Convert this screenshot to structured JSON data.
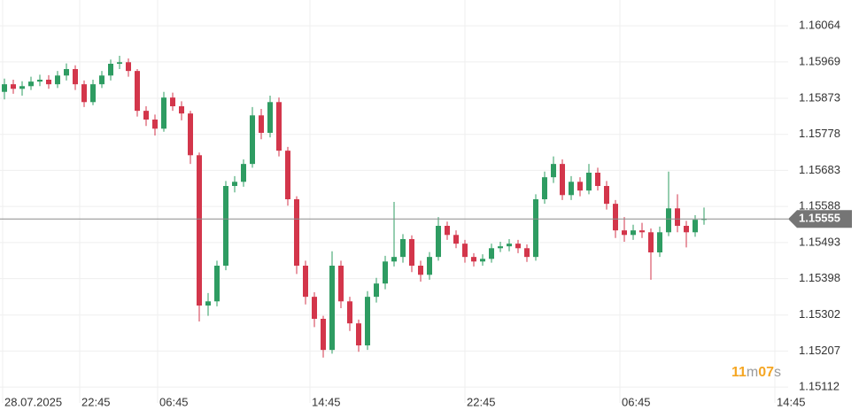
{
  "chart_data": {
    "type": "candlestick",
    "up_color": "#2e9c62",
    "down_color": "#d3364b",
    "grid": true,
    "open": [
      1.1589,
      1.1591,
      1.15898,
      1.15905,
      1.15917,
      1.15922,
      1.1591,
      1.15933,
      1.1595,
      1.1591,
      1.15863,
      1.1591,
      1.15933,
      1.15964,
      1.15968,
      1.15945,
      1.1584,
      1.15817,
      1.15793,
      1.15875,
      1.15852,
      1.15833,
      1.15723,
      1.15327,
      1.15338,
      1.15432,
      1.15642,
      1.15653,
      1.157,
      1.15828,
      1.15782,
      1.15863,
      1.15735,
      1.15607,
      1.15432,
      1.1535,
      1.15292,
      1.1521,
      1.15432,
      1.15338,
      1.1528,
      1.15222,
      1.1535,
      1.15385,
      1.15443,
      1.15455,
      1.15502,
      1.15432,
      1.15408,
      1.15455,
      1.15537,
      1.15513,
      1.1549,
      1.15455,
      1.15443,
      1.1545,
      1.15478,
      1.15483,
      1.1549,
      1.15478,
      1.15455,
      1.15607,
      1.15665,
      1.157,
      1.15618,
      1.15653,
      1.1563,
      1.15677,
      1.15642,
      1.15595,
      1.15525,
      1.15513,
      1.15525,
      1.1552,
      1.15467,
      1.1552,
      1.15583,
      1.15537,
      1.1552,
      1.15553
    ],
    "high": [
      1.15925,
      1.15922,
      1.15918,
      1.1593,
      1.15935,
      1.15934,
      1.15945,
      1.15965,
      1.1596,
      1.1592,
      1.15922,
      1.15945,
      1.15975,
      1.15985,
      1.15978,
      1.1595,
      1.15852,
      1.1583,
      1.1589,
      1.15888,
      1.15865,
      1.1584,
      1.1573,
      1.1536,
      1.15445,
      1.15655,
      1.15668,
      1.15712,
      1.1585,
      1.15845,
      1.1588,
      1.15875,
      1.15745,
      1.15615,
      1.15445,
      1.15362,
      1.153,
      1.1547,
      1.15445,
      1.1535,
      1.1529,
      1.15365,
      1.154,
      1.15458,
      1.156,
      1.15515,
      1.15512,
      1.15445,
      1.15468,
      1.1556,
      1.15548,
      1.15525,
      1.155,
      1.15465,
      1.15462,
      1.1549,
      1.15495,
      1.15502,
      1.155,
      1.15488,
      1.1562,
      1.1568,
      1.1572,
      1.15712,
      1.15668,
      1.15665,
      1.157,
      1.1569,
      1.15655,
      1.15605,
      1.1556,
      1.1554,
      1.15545,
      1.1553,
      1.15535,
      1.1568,
      1.1562,
      1.1555,
      1.15565,
      1.15585
    ],
    "low": [
      1.1587,
      1.15885,
      1.1588,
      1.15895,
      1.15905,
      1.15898,
      1.159,
      1.1592,
      1.15895,
      1.1585,
      1.15855,
      1.159,
      1.1592,
      1.1595,
      1.1593,
      1.15825,
      1.158,
      1.15775,
      1.15785,
      1.1584,
      1.15815,
      1.157,
      1.15285,
      1.153,
      1.15325,
      1.1542,
      1.15625,
      1.1564,
      1.1569,
      1.15765,
      1.1577,
      1.1572,
      1.1559,
      1.1541,
      1.1533,
      1.1527,
      1.1519,
      1.152,
      1.1532,
      1.1526,
      1.15205,
      1.1521,
      1.15335,
      1.1537,
      1.1543,
      1.1544,
      1.15415,
      1.1539,
      1.15395,
      1.15445,
      1.155,
      1.15478,
      1.1544,
      1.1543,
      1.15432,
      1.1544,
      1.15468,
      1.1547,
      1.15465,
      1.15442,
      1.15445,
      1.15595,
      1.1565,
      1.15605,
      1.15605,
      1.15615,
      1.1562,
      1.1563,
      1.1558,
      1.15505,
      1.15495,
      1.155,
      1.15505,
      1.15395,
      1.15455,
      1.1551,
      1.1552,
      1.1548,
      1.15508,
      1.1554
    ],
    "close": [
      1.1591,
      1.15898,
      1.15905,
      1.15917,
      1.15922,
      1.1591,
      1.15933,
      1.1595,
      1.1591,
      1.15863,
      1.1591,
      1.15933,
      1.15964,
      1.15968,
      1.15945,
      1.1584,
      1.15817,
      1.15793,
      1.15875,
      1.15852,
      1.15833,
      1.15723,
      1.15327,
      1.15338,
      1.15432,
      1.15642,
      1.15653,
      1.157,
      1.15828,
      1.15782,
      1.15863,
      1.15735,
      1.15607,
      1.15432,
      1.1535,
      1.15292,
      1.1521,
      1.15432,
      1.15338,
      1.1528,
      1.15222,
      1.1535,
      1.15385,
      1.15443,
      1.15455,
      1.15502,
      1.15432,
      1.15408,
      1.15455,
      1.15537,
      1.15513,
      1.1549,
      1.15455,
      1.15443,
      1.1545,
      1.15478,
      1.15483,
      1.1549,
      1.15478,
      1.15455,
      1.15607,
      1.15665,
      1.157,
      1.15618,
      1.15653,
      1.1563,
      1.15677,
      1.15642,
      1.15595,
      1.15525,
      1.15513,
      1.15525,
      1.1552,
      1.15467,
      1.1552,
      1.15583,
      1.15537,
      1.1552,
      1.15553,
      1.15555
    ],
    "xlim": [
      -0.5,
      88.5
    ],
    "xticks": [
      {
        "value": -0.2,
        "label": "28.07.2025"
      },
      {
        "value": 8.5,
        "label": "22:45"
      },
      {
        "value": 17.3,
        "label": "06:45"
      },
      {
        "value": 34.5,
        "label": "14:45"
      },
      {
        "value": 52,
        "label": "22:45"
      },
      {
        "value": 69.5,
        "label": "06:45"
      },
      {
        "value": 87,
        "label": "14:45"
      }
    ],
    "ylim": [
      1.15047,
      1.16132
    ],
    "yticks": [
      1.16064,
      1.15969,
      1.15873,
      1.15778,
      1.15683,
      1.15588,
      1.15493,
      1.15398,
      1.15302,
      1.15207,
      1.15112
    ],
    "last_price": 1.15555,
    "countdown": [
      "11",
      "m",
      "07",
      "s"
    ]
  }
}
